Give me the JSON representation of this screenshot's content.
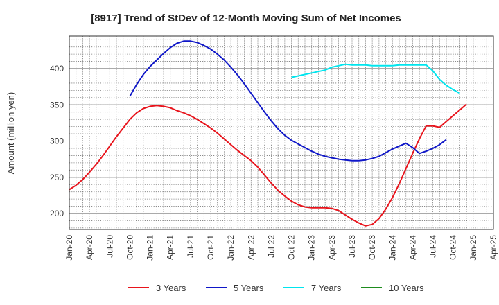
{
  "chart_data": {
    "type": "line",
    "title": "[8917]  Trend of StDev of 12-Month Moving Sum of Net Incomes",
    "xlabel": "",
    "ylabel": "Amount (million yen)",
    "ylim": [
      178,
      445
    ],
    "yticks": [
      200,
      250,
      300,
      350,
      400
    ],
    "xlim": [
      "2020-01",
      "2025-04"
    ],
    "xticks": [
      "Jan-20",
      "Apr-20",
      "Jul-20",
      "Oct-20",
      "Jan-21",
      "Apr-21",
      "Jul-21",
      "Oct-21",
      "Jan-22",
      "Apr-22",
      "Jul-22",
      "Oct-22",
      "Jan-23",
      "Apr-23",
      "Jul-23",
      "Oct-23",
      "Jan-24",
      "Apr-24",
      "Jul-24",
      "Oct-24",
      "Jan-25",
      "Apr-25"
    ],
    "grid": true,
    "legend_position": "bottom",
    "series": [
      {
        "name": "3 Years",
        "color": "#e8141c",
        "points": [
          [
            "2020-01",
            233
          ],
          [
            "2020-02",
            239
          ],
          [
            "2020-03",
            247
          ],
          [
            "2020-04",
            257
          ],
          [
            "2020-05",
            268
          ],
          [
            "2020-06",
            280
          ],
          [
            "2020-07",
            293
          ],
          [
            "2020-08",
            306
          ],
          [
            "2020-09",
            318
          ],
          [
            "2020-10",
            330
          ],
          [
            "2020-11",
            339
          ],
          [
            "2020-12",
            345
          ],
          [
            "2021-01",
            348
          ],
          [
            "2021-02",
            349
          ],
          [
            "2021-03",
            348
          ],
          [
            "2021-04",
            346
          ],
          [
            "2021-05",
            342
          ],
          [
            "2021-06",
            339
          ],
          [
            "2021-07",
            335
          ],
          [
            "2021-08",
            330
          ],
          [
            "2021-09",
            324
          ],
          [
            "2021-10",
            318
          ],
          [
            "2021-11",
            311
          ],
          [
            "2021-12",
            303
          ],
          [
            "2022-01",
            295
          ],
          [
            "2022-02",
            287
          ],
          [
            "2022-03",
            280
          ],
          [
            "2022-04",
            273
          ],
          [
            "2022-05",
            264
          ],
          [
            "2022-06",
            253
          ],
          [
            "2022-07",
            242
          ],
          [
            "2022-08",
            232
          ],
          [
            "2022-09",
            224
          ],
          [
            "2022-10",
            217
          ],
          [
            "2022-11",
            212
          ],
          [
            "2022-12",
            209
          ],
          [
            "2023-01",
            208
          ],
          [
            "2023-02",
            208
          ],
          [
            "2023-03",
            208
          ],
          [
            "2023-04",
            207
          ],
          [
            "2023-05",
            204
          ],
          [
            "2023-06",
            198
          ],
          [
            "2023-07",
            192
          ],
          [
            "2023-08",
            187
          ],
          [
            "2023-09",
            183
          ],
          [
            "2023-10",
            185
          ],
          [
            "2023-11",
            193
          ],
          [
            "2023-12",
            206
          ],
          [
            "2024-01",
            222
          ],
          [
            "2024-02",
            241
          ],
          [
            "2024-03",
            262
          ],
          [
            "2024-04",
            283
          ],
          [
            "2024-05",
            303
          ],
          [
            "2024-06",
            321
          ],
          [
            "2024-07",
            321
          ],
          [
            "2024-08",
            319
          ],
          [
            "2024-09",
            327
          ],
          [
            "2024-10",
            335
          ],
          [
            "2024-11",
            343
          ],
          [
            "2024-12",
            351
          ]
        ]
      },
      {
        "name": "5 Years",
        "color": "#0f17c8",
        "points": [
          [
            "2020-10",
            362
          ],
          [
            "2020-11",
            378
          ],
          [
            "2020-12",
            392
          ],
          [
            "2021-01",
            403
          ],
          [
            "2021-02",
            412
          ],
          [
            "2021-03",
            421
          ],
          [
            "2021-04",
            429
          ],
          [
            "2021-05",
            435
          ],
          [
            "2021-06",
            438
          ],
          [
            "2021-07",
            438
          ],
          [
            "2021-08",
            436
          ],
          [
            "2021-09",
            432
          ],
          [
            "2021-10",
            427
          ],
          [
            "2021-11",
            420
          ],
          [
            "2021-12",
            412
          ],
          [
            "2022-01",
            402
          ],
          [
            "2022-02",
            391
          ],
          [
            "2022-03",
            379
          ],
          [
            "2022-04",
            366
          ],
          [
            "2022-05",
            353
          ],
          [
            "2022-06",
            340
          ],
          [
            "2022-07",
            328
          ],
          [
            "2022-08",
            317
          ],
          [
            "2022-09",
            308
          ],
          [
            "2022-10",
            301
          ],
          [
            "2022-11",
            296
          ],
          [
            "2022-12",
            291
          ],
          [
            "2023-01",
            286
          ],
          [
            "2023-02",
            282
          ],
          [
            "2023-03",
            279
          ],
          [
            "2023-04",
            277
          ],
          [
            "2023-05",
            275
          ],
          [
            "2023-06",
            274
          ],
          [
            "2023-07",
            273
          ],
          [
            "2023-08",
            273
          ],
          [
            "2023-09",
            274
          ],
          [
            "2023-10",
            276
          ],
          [
            "2023-11",
            279
          ],
          [
            "2023-12",
            284
          ],
          [
            "2024-01",
            289
          ],
          [
            "2024-02",
            293
          ],
          [
            "2024-03",
            297
          ],
          [
            "2024-04",
            291
          ],
          [
            "2024-05",
            283
          ],
          [
            "2024-06",
            286
          ],
          [
            "2024-07",
            290
          ],
          [
            "2024-08",
            295
          ],
          [
            "2024-09",
            302
          ]
        ]
      },
      {
        "name": "7 Years",
        "color": "#00e5ee",
        "points": [
          [
            "2022-10",
            388
          ],
          [
            "2022-11",
            390
          ],
          [
            "2022-12",
            392
          ],
          [
            "2023-01",
            394
          ],
          [
            "2023-02",
            396
          ],
          [
            "2023-03",
            398
          ],
          [
            "2023-04",
            402
          ],
          [
            "2023-05",
            404
          ],
          [
            "2023-06",
            406
          ],
          [
            "2023-07",
            405
          ],
          [
            "2023-08",
            405
          ],
          [
            "2023-09",
            405
          ],
          [
            "2023-10",
            404
          ],
          [
            "2023-11",
            404
          ],
          [
            "2023-12",
            404
          ],
          [
            "2024-01",
            404
          ],
          [
            "2024-02",
            405
          ],
          [
            "2024-03",
            405
          ],
          [
            "2024-04",
            405
          ],
          [
            "2024-05",
            405
          ],
          [
            "2024-06",
            405
          ],
          [
            "2024-07",
            397
          ],
          [
            "2024-08",
            385
          ],
          [
            "2024-09",
            377
          ],
          [
            "2024-10",
            371
          ],
          [
            "2024-11",
            366
          ]
        ]
      },
      {
        "name": "10 Years",
        "color": "#1e8c1e",
        "points": []
      }
    ]
  }
}
